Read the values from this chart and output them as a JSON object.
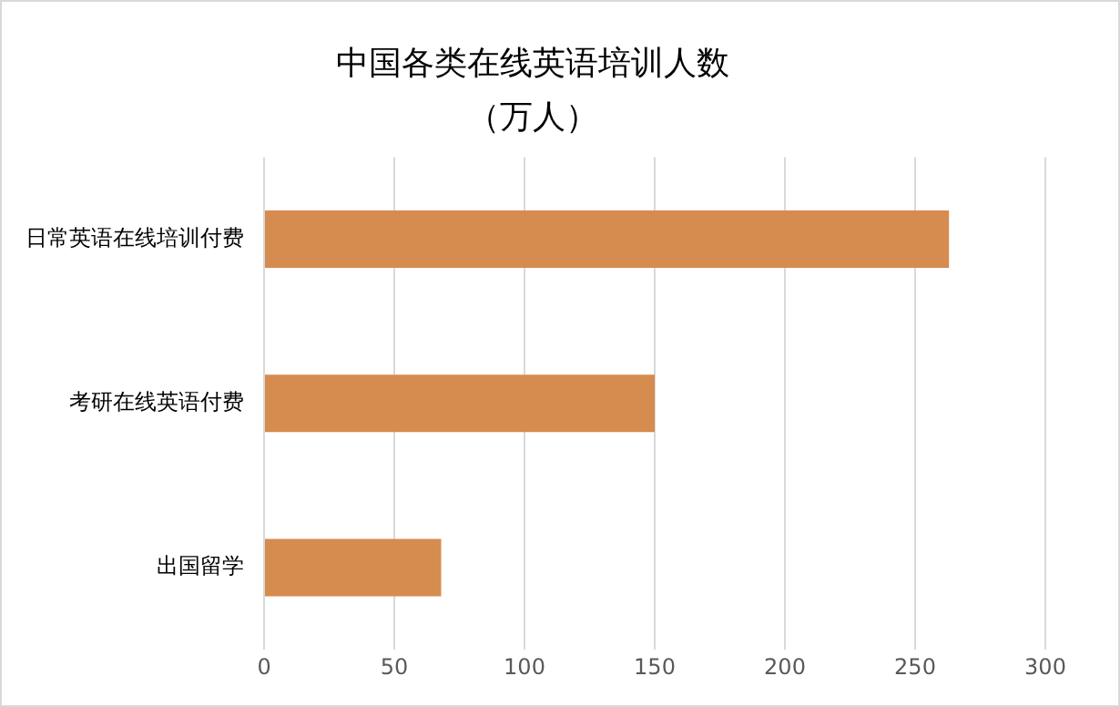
{
  "chart_data": {
    "type": "bar",
    "orientation": "horizontal",
    "title": "中国各类在线英语培训人数",
    "subtitle": "（万人）",
    "categories": [
      "日常英语在线培训付费",
      "考研在线英语付费",
      "出国留学"
    ],
    "values": [
      263,
      150,
      68
    ],
    "color": "#d68b4f",
    "xlim": [
      0,
      300
    ],
    "xticks": [
      0,
      50,
      100,
      150,
      200,
      250,
      300
    ],
    "grid": "x",
    "legend": false
  }
}
